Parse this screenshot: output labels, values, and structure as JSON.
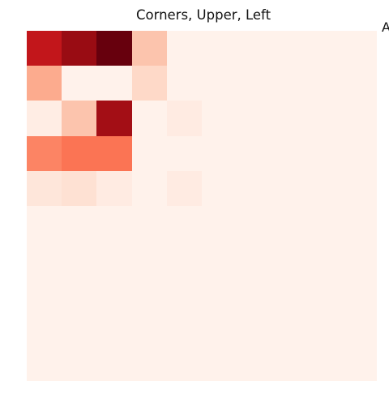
{
  "chart_data": {
    "type": "heatmap",
    "title": "Corners, Upper, Left",
    "xlabel": "",
    "ylabel": "",
    "rows": 10,
    "cols": 10,
    "colormap": "Reds",
    "vlim": [
      0,
      1
    ],
    "grid": false,
    "values": [
      [
        0.78,
        0.9,
        1.0,
        0.22,
        0.02,
        0.02,
        0.02,
        0.02,
        0.02,
        0.02
      ],
      [
        0.3,
        0.02,
        0.02,
        0.15,
        0.02,
        0.02,
        0.02,
        0.02,
        0.02,
        0.02
      ],
      [
        0.05,
        0.22,
        0.88,
        0.02,
        0.06,
        0.02,
        0.02,
        0.02,
        0.02,
        0.02
      ],
      [
        0.42,
        0.47,
        0.47,
        0.02,
        0.02,
        0.02,
        0.02,
        0.02,
        0.02,
        0.02
      ],
      [
        0.09,
        0.12,
        0.06,
        0.02,
        0.06,
        0.02,
        0.02,
        0.02,
        0.02,
        0.02
      ],
      [
        0.02,
        0.02,
        0.02,
        0.02,
        0.02,
        0.02,
        0.02,
        0.02,
        0.02,
        0.02
      ],
      [
        0.02,
        0.02,
        0.02,
        0.02,
        0.02,
        0.02,
        0.02,
        0.02,
        0.02,
        0.02
      ],
      [
        0.02,
        0.02,
        0.02,
        0.02,
        0.02,
        0.02,
        0.02,
        0.02,
        0.02,
        0.02
      ],
      [
        0.02,
        0.02,
        0.02,
        0.02,
        0.02,
        0.02,
        0.02,
        0.02,
        0.02,
        0.02
      ],
      [
        0.02,
        0.02,
        0.02,
        0.02,
        0.02,
        0.02,
        0.02,
        0.02,
        0.02,
        0.02
      ]
    ]
  },
  "stray_glyph": "A",
  "colors": {
    "background": "#ffffff",
    "text": "#111111"
  }
}
